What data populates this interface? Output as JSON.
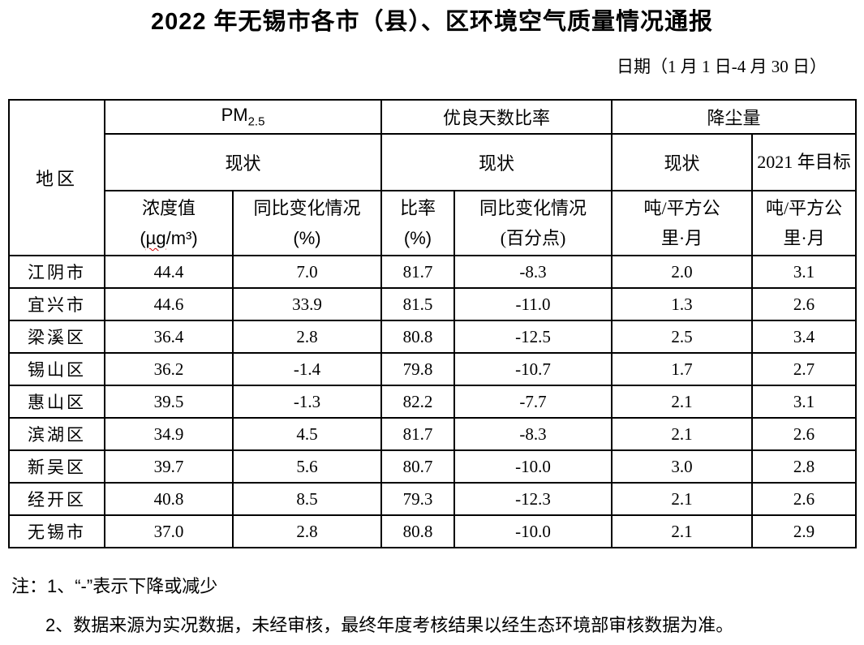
{
  "title": "2022 年无锡市各市（县）、区环境空气质量情况通报",
  "date_line": "日期（1 月 1 日-4 月 30 日）",
  "table": {
    "region_header": "地区",
    "pm_group": {
      "base": "PM",
      "sub": "2.5"
    },
    "good_days_group": "优良天数比率",
    "dustfall_group": "降尘量",
    "status_row": [
      "现状",
      "现状",
      "现状",
      "2021 年目标"
    ],
    "unit_headers": [
      {
        "line1": "浓度值",
        "line2_pre": "(",
        "line2_mark": "µg",
        "line2_post": "/m³)"
      },
      {
        "line1": "同比变化情况",
        "line2": "(%)"
      },
      {
        "line1": "比率",
        "line2": "(%)"
      },
      {
        "line1": "同比变化情况",
        "line2": "(百分点)"
      },
      {
        "line1": "吨/平方公",
        "line2": "里·月"
      },
      {
        "line1": "吨/平方公",
        "line2": "里·月"
      }
    ],
    "rows": [
      {
        "region": "江阴市",
        "values": [
          "44.4",
          "7.0",
          "81.7",
          "-8.3",
          "2.0",
          "3.1"
        ]
      },
      {
        "region": "宜兴市",
        "values": [
          "44.6",
          "33.9",
          "81.5",
          "-11.0",
          "1.3",
          "2.6"
        ]
      },
      {
        "region": "梁溪区",
        "values": [
          "36.4",
          "2.8",
          "80.8",
          "-12.5",
          "2.5",
          "3.4"
        ]
      },
      {
        "region": "锡山区",
        "values": [
          "36.2",
          "-1.4",
          "79.8",
          "-10.7",
          "1.7",
          "2.7"
        ]
      },
      {
        "region": "惠山区",
        "values": [
          "39.5",
          "-1.3",
          "82.2",
          "-7.7",
          "2.1",
          "3.1"
        ]
      },
      {
        "region": "滨湖区",
        "values": [
          "34.9",
          "4.5",
          "81.7",
          "-8.3",
          "2.1",
          "2.6"
        ]
      },
      {
        "region": "新吴区",
        "values": [
          "39.7",
          "5.6",
          "80.7",
          "-10.0",
          "3.0",
          "2.8"
        ]
      },
      {
        "region": "经开区",
        "values": [
          "40.8",
          "8.5",
          "79.3",
          "-12.3",
          "2.1",
          "2.6"
        ]
      },
      {
        "region": "无锡市",
        "values": [
          "37.0",
          "2.8",
          "80.8",
          "-10.0",
          "2.1",
          "2.9"
        ]
      }
    ]
  },
  "notes": [
    "注：1、“-”表示下降或减少",
    "2、数据来源为实况数据，未经审核，最终年度考核结果以经生态环境部审核数据为准。"
  ]
}
